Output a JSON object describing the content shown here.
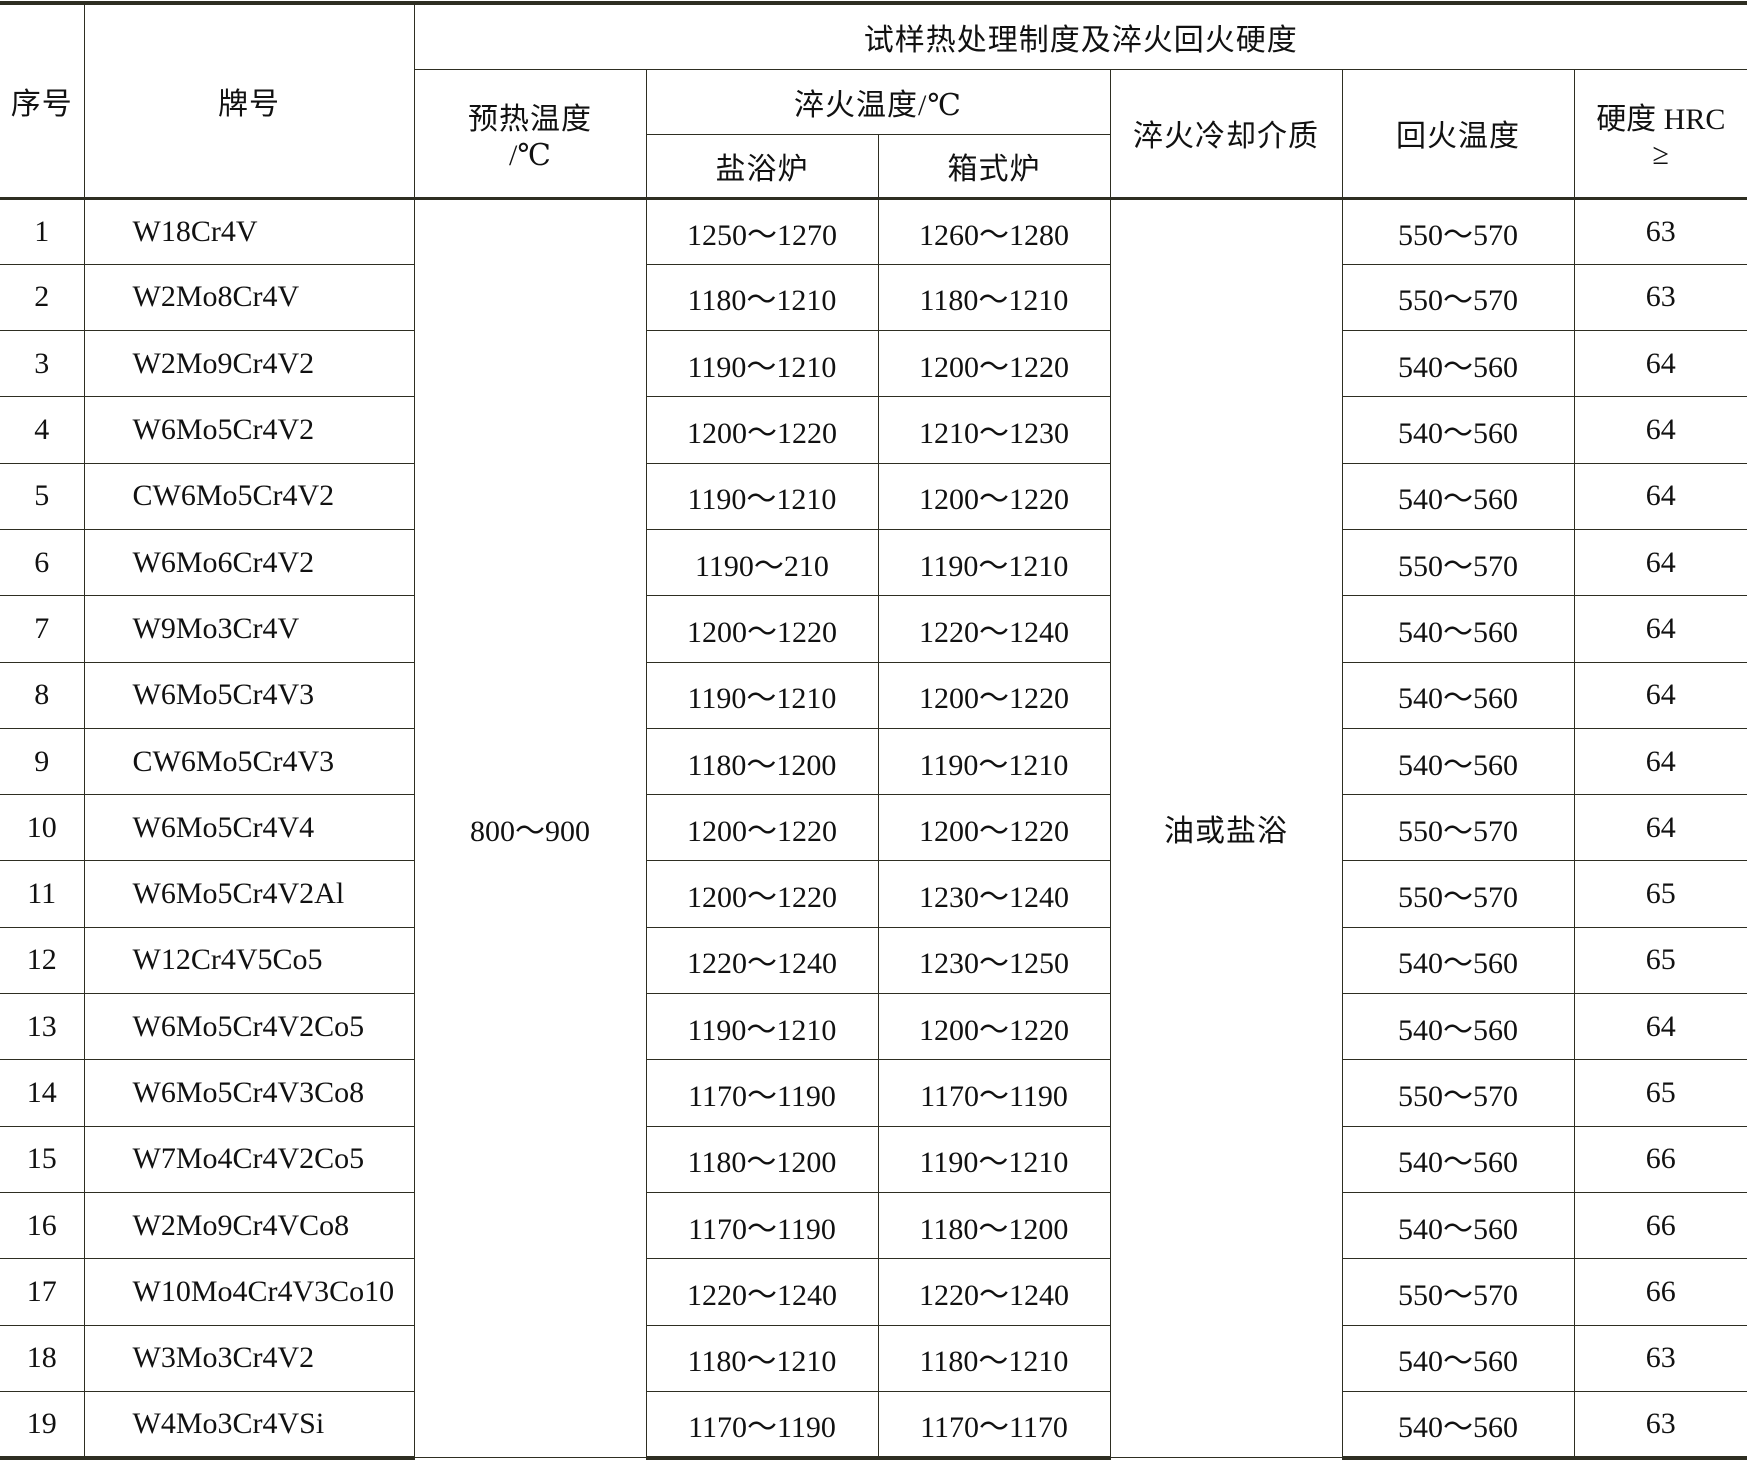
{
  "header": {
    "seq": "序号",
    "grade": "牌号",
    "group": "试样热处理制度及淬火回火硬度",
    "preheat": "预热温度",
    "preheat_unit": "/℃",
    "quench_temp": "淬火温度/℃",
    "salt_bath": "盐浴炉",
    "box_furnace": "箱式炉",
    "quench_medium": "淬火冷却介质",
    "temper_temp": "回火温度",
    "hardness": "硬度 HRC",
    "hardness_sym": "≥"
  },
  "merged": {
    "preheat_value": "800～900",
    "medium_value": "油或盐浴"
  },
  "rows": [
    {
      "no": "1",
      "grade": "W18Cr4V",
      "salt": "1250～1270",
      "box": "1260～1280",
      "temper": "550～570",
      "hrc": "63"
    },
    {
      "no": "2",
      "grade": "W2Mo8Cr4V",
      "salt": "1180～1210",
      "box": "1180～1210",
      "temper": "550～570",
      "hrc": "63"
    },
    {
      "no": "3",
      "grade": "W2Mo9Cr4V2",
      "salt": "1190～1210",
      "box": "1200～1220",
      "temper": "540～560",
      "hrc": "64"
    },
    {
      "no": "4",
      "grade": "W6Mo5Cr4V2",
      "salt": "1200～1220",
      "box": "1210～1230",
      "temper": "540～560",
      "hrc": "64"
    },
    {
      "no": "5",
      "grade": "CW6Mo5Cr4V2",
      "salt": "1190～1210",
      "box": "1200～1220",
      "temper": "540～560",
      "hrc": "64"
    },
    {
      "no": "6",
      "grade": "W6Mo6Cr4V2",
      "salt": "1190～210",
      "box": "1190～1210",
      "temper": "550～570",
      "hrc": "64"
    },
    {
      "no": "7",
      "grade": "W9Mo3Cr4V",
      "salt": "1200～1220",
      "box": "1220～1240",
      "temper": "540～560",
      "hrc": "64"
    },
    {
      "no": "8",
      "grade": "W6Mo5Cr4V3",
      "salt": "1190～1210",
      "box": "1200～1220",
      "temper": "540～560",
      "hrc": "64"
    },
    {
      "no": "9",
      "grade": "CW6Mo5Cr4V3",
      "salt": "1180～1200",
      "box": "1190～1210",
      "temper": "540～560",
      "hrc": "64"
    },
    {
      "no": "10",
      "grade": "W6Mo5Cr4V4",
      "salt": "1200～1220",
      "box": "1200～1220",
      "temper": "550～570",
      "hrc": "64"
    },
    {
      "no": "11",
      "grade": "W6Mo5Cr4V2Al",
      "salt": "1200～1220",
      "box": "1230～1240",
      "temper": "550～570",
      "hrc": "65"
    },
    {
      "no": "12",
      "grade": "W12Cr4V5Co5",
      "salt": "1220～1240",
      "box": "1230～1250",
      "temper": "540～560",
      "hrc": "65"
    },
    {
      "no": "13",
      "grade": "W6Mo5Cr4V2Co5",
      "salt": "1190～1210",
      "box": "1200～1220",
      "temper": "540～560",
      "hrc": "64"
    },
    {
      "no": "14",
      "grade": "W6Mo5Cr4V3Co8",
      "salt": "1170～1190",
      "box": "1170～1190",
      "temper": "550～570",
      "hrc": "65"
    },
    {
      "no": "15",
      "grade": "W7Mo4Cr4V2Co5",
      "salt": "1180～1200",
      "box": "1190～1210",
      "temper": "540～560",
      "hrc": "66"
    },
    {
      "no": "16",
      "grade": "W2Mo9Cr4VCo8",
      "salt": "1170～1190",
      "box": "1180～1200",
      "temper": "540～560",
      "hrc": "66"
    },
    {
      "no": "17",
      "grade": "W10Mo4Cr4V3Co10",
      "salt": "1220～1240",
      "box": "1220～1240",
      "temper": "550～570",
      "hrc": "66"
    },
    {
      "no": "18",
      "grade": "W3Mo3Cr4V2",
      "salt": "1180～1210",
      "box": "1180～1210",
      "temper": "540～560",
      "hrc": "63"
    },
    {
      "no": "19",
      "grade": "W4Mo3Cr4VSi",
      "salt": "1170～1190",
      "box": "1170～1170",
      "temper": "540～560",
      "hrc": "63"
    }
  ]
}
